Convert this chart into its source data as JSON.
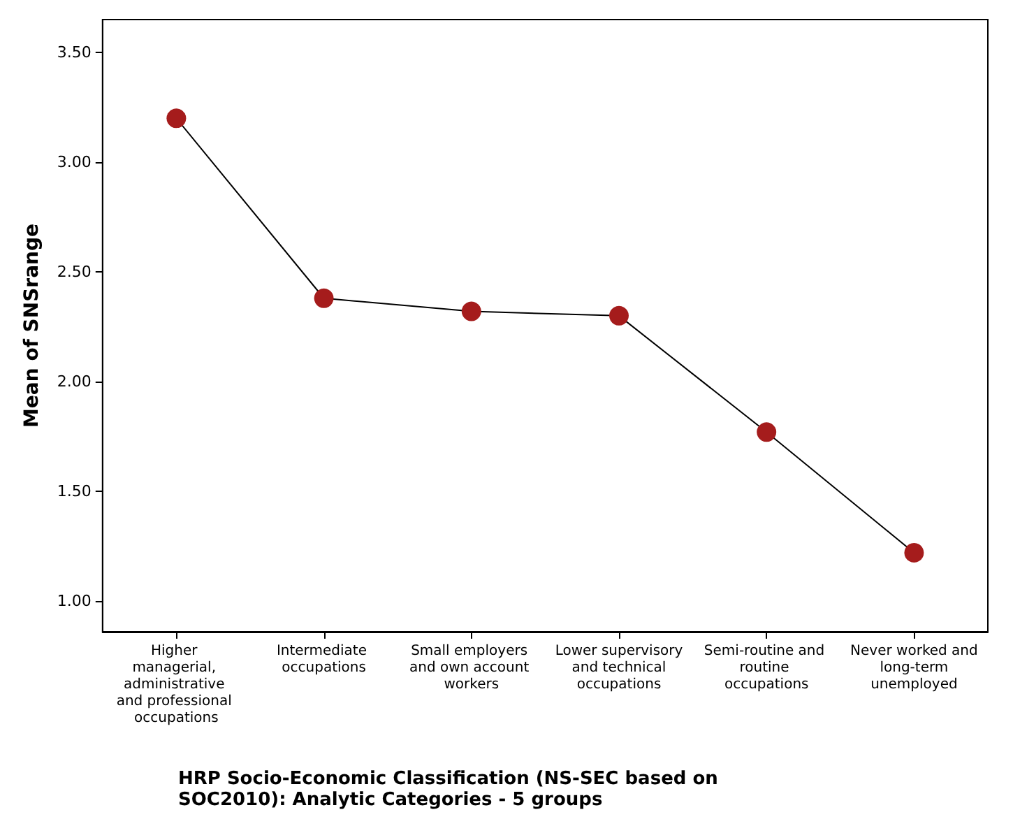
{
  "chart_data": {
    "type": "line",
    "xlabel": "HRP Socio-Economic Classification (NS-SEC based on SOC2010): Analytic Categories - 5 groups",
    "ylabel": "Mean of SNSrange",
    "categories": [
      "Higher managerial, administrative and professional occupations",
      "Intermediate occupations",
      "Small employers and own account workers",
      "Lower supervisory and technical occupations",
      "Semi-routine and routine occupations",
      "Never worked and long-term unemployed"
    ],
    "series": [
      {
        "color": "#a51c1c",
        "values": [
          3.2,
          2.38,
          2.32,
          2.3,
          1.77,
          1.22
        ]
      }
    ],
    "ylim": [
      0.86,
      3.65
    ],
    "yticks": [
      {
        "value": 1,
        "label": "1.00"
      },
      {
        "value": 1.5,
        "label": "1.50"
      },
      {
        "value": 2,
        "label": "2.00"
      },
      {
        "value": 2.5,
        "label": "2.50"
      },
      {
        "value": 3,
        "label": "3.00"
      },
      {
        "value": 3.5,
        "label": "3.50"
      }
    ],
    "grid": false,
    "marker": "circle",
    "line_style": "solid"
  }
}
